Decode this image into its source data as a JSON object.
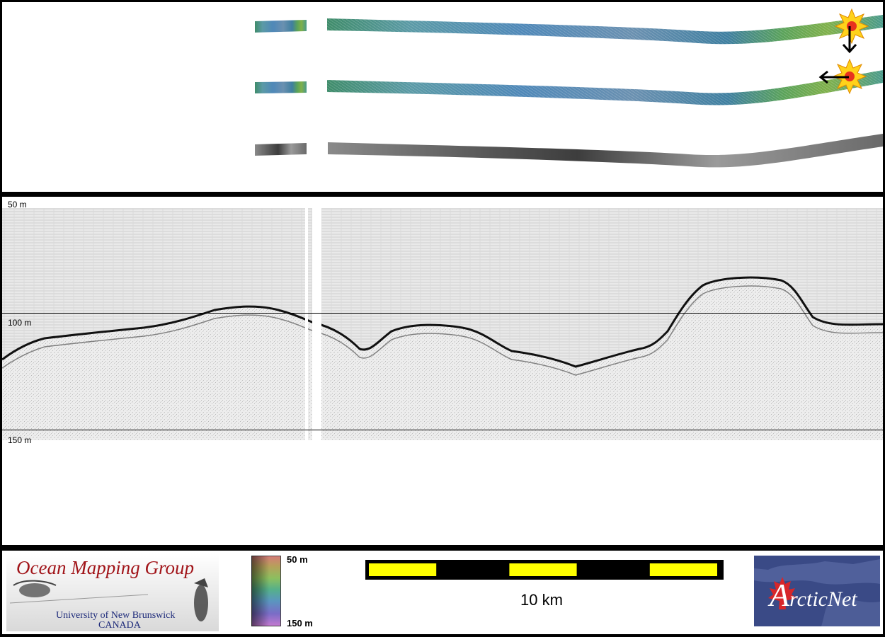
{
  "profile": {
    "depth_labels": [
      "50 m",
      "100 m",
      "150 m"
    ]
  },
  "legend": {
    "top_label": "50 m",
    "bottom_label": "150 m"
  },
  "scale_bar": {
    "label": "10 km",
    "fill_color": "#ffff00",
    "segment_count": 5
  },
  "logos": {
    "ocean_mapping": {
      "title": "Ocean Mapping Group",
      "line1": "University of New Brunswick",
      "line2": "CANADA"
    },
    "arcticnet": {
      "initial": "A",
      "rest": "rcticNet"
    }
  },
  "markers": {
    "icon": "starburst-icon",
    "arrow_icons": [
      "arrow-down-icon",
      "arrow-left-icon"
    ]
  }
}
